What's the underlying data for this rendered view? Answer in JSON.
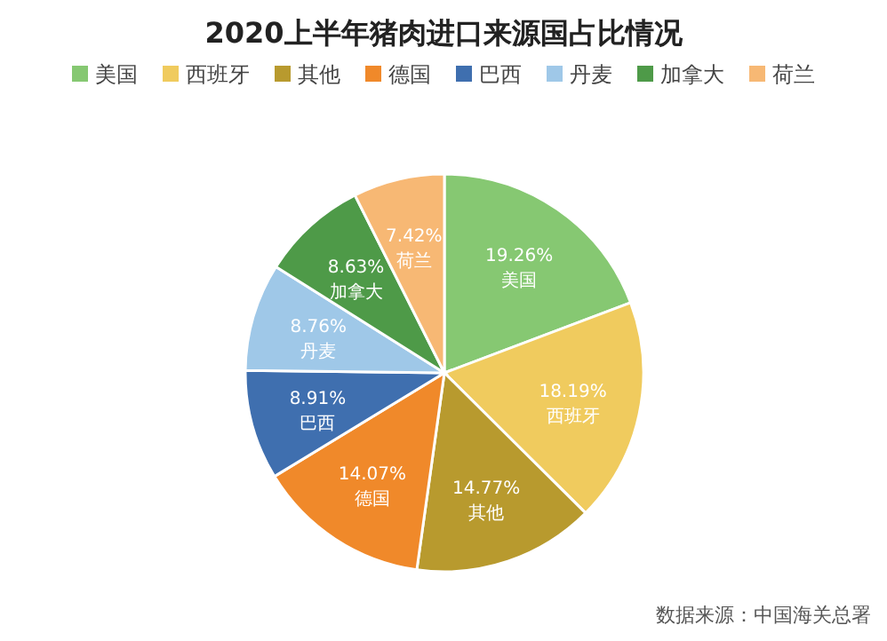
{
  "chart_data": {
    "type": "pie",
    "title": "2020上半年猪肉进口来源国占比情况",
    "categories": [
      "美国",
      "西班牙",
      "其他",
      "德国",
      "巴西",
      "丹麦",
      "加拿大",
      "荷兰"
    ],
    "values": [
      19.26,
      18.19,
      14.77,
      14.07,
      8.91,
      8.76,
      8.63,
      7.42
    ],
    "value_labels": [
      "19.26%",
      "18.19%",
      "14.77%",
      "14.07%",
      "8.91%",
      "8.76%",
      "8.63%",
      "7.42%"
    ],
    "colors": [
      "#86c872",
      "#f0cb5e",
      "#b89a2e",
      "#f0892a",
      "#3f6faf",
      "#9fc8e8",
      "#4e9a48",
      "#f7b874"
    ],
    "legend": "top",
    "annotations": [
      "数据来源：中国海关总署"
    ]
  }
}
